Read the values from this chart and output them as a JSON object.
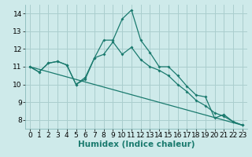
{
  "title": "",
  "xlabel": "Humidex (Indice chaleur)",
  "bg_color": "#ceeaea",
  "grid_color": "#aacece",
  "line_color": "#1a7a6e",
  "xlim": [
    -0.5,
    23.5
  ],
  "ylim": [
    7.5,
    14.5
  ],
  "xticks": [
    0,
    1,
    2,
    3,
    4,
    5,
    6,
    7,
    8,
    9,
    10,
    11,
    12,
    13,
    14,
    15,
    16,
    17,
    18,
    19,
    20,
    21,
    22,
    23
  ],
  "yticks": [
    8,
    9,
    10,
    11,
    12,
    13,
    14
  ],
  "line1_x": [
    0,
    1,
    2,
    3,
    4,
    5,
    6,
    7,
    8,
    9,
    10,
    11,
    12,
    13,
    14,
    15,
    16,
    17,
    18,
    19,
    20,
    21,
    22,
    23
  ],
  "line1_y": [
    11.0,
    10.7,
    11.2,
    11.3,
    11.1,
    10.0,
    10.3,
    11.5,
    12.5,
    12.5,
    13.7,
    14.2,
    12.5,
    11.8,
    11.0,
    11.0,
    10.5,
    9.9,
    9.4,
    9.3,
    8.1,
    8.3,
    7.9,
    7.7
  ],
  "line2_x": [
    0,
    1,
    2,
    3,
    4,
    5,
    6,
    7,
    8,
    9,
    10,
    11,
    12,
    13,
    14,
    15,
    16,
    17,
    18,
    19,
    20,
    21,
    22,
    23
  ],
  "line2_y": [
    11.0,
    10.7,
    11.2,
    11.3,
    11.1,
    10.0,
    10.4,
    11.5,
    11.7,
    12.4,
    11.7,
    12.1,
    11.4,
    11.0,
    10.8,
    10.5,
    10.0,
    9.6,
    9.1,
    8.8,
    8.4,
    8.2,
    7.9,
    7.7
  ],
  "line3_x": [
    0,
    23
  ],
  "line3_y": [
    11.0,
    7.7
  ],
  "tick_fontsize": 6.5,
  "xlabel_fontsize": 7.5,
  "marker_size": 2.0,
  "linewidth": 0.9
}
